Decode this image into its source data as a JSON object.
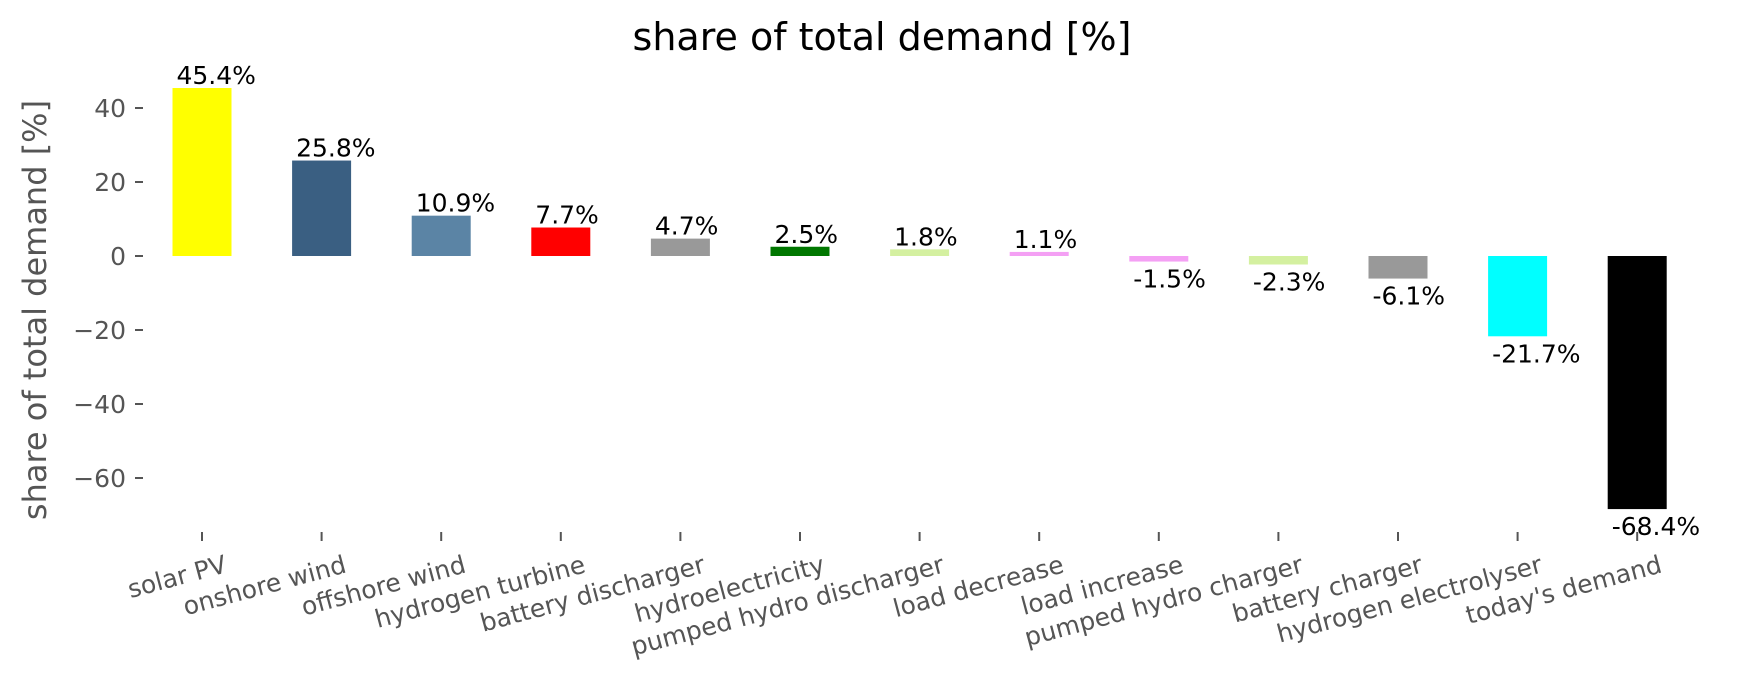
{
  "chart_data": {
    "type": "bar",
    "title": "share of total demand [%]",
    "ylabel": "share of total demand [%]",
    "xlabel": "",
    "ylim": [
      -75,
      48
    ],
    "yticks": [
      40,
      20,
      0,
      -20,
      -40,
      -60
    ],
    "ytick_labels": [
      "40",
      "20",
      "0",
      "−20",
      "−40",
      "−60"
    ],
    "grid": false,
    "categories": [
      "solar PV",
      "onshore wind",
      "offshore wind",
      "hydrogen turbine",
      "battery discharger",
      "hydroelectricity",
      "pumped hydro discharger",
      "load decrease",
      "load increase",
      "pumped hydro charger",
      "battery charger",
      "hydrogen electrolyser",
      "today's demand"
    ],
    "values": [
      45.4,
      25.8,
      10.9,
      7.7,
      4.7,
      2.5,
      1.8,
      1.1,
      -1.5,
      -2.3,
      -6.1,
      -21.7,
      -68.4
    ],
    "labels": [
      "45.4%",
      "25.8%",
      "10.9%",
      "7.7%",
      "4.7%",
      "2.5%",
      "1.8%",
      "1.1%",
      "-1.5%",
      "-2.3%",
      "-6.1%",
      "-21.7%",
      "-68.4%"
    ],
    "colors": [
      "#ffff00",
      "#3a5f82",
      "#5b84a5",
      "#ff0000",
      "#999999",
      "#007700",
      "#d4f0a0",
      "#f4a0f4",
      "#f4a0f4",
      "#d4f0a0",
      "#999999",
      "#00ffff",
      "#000000"
    ]
  }
}
